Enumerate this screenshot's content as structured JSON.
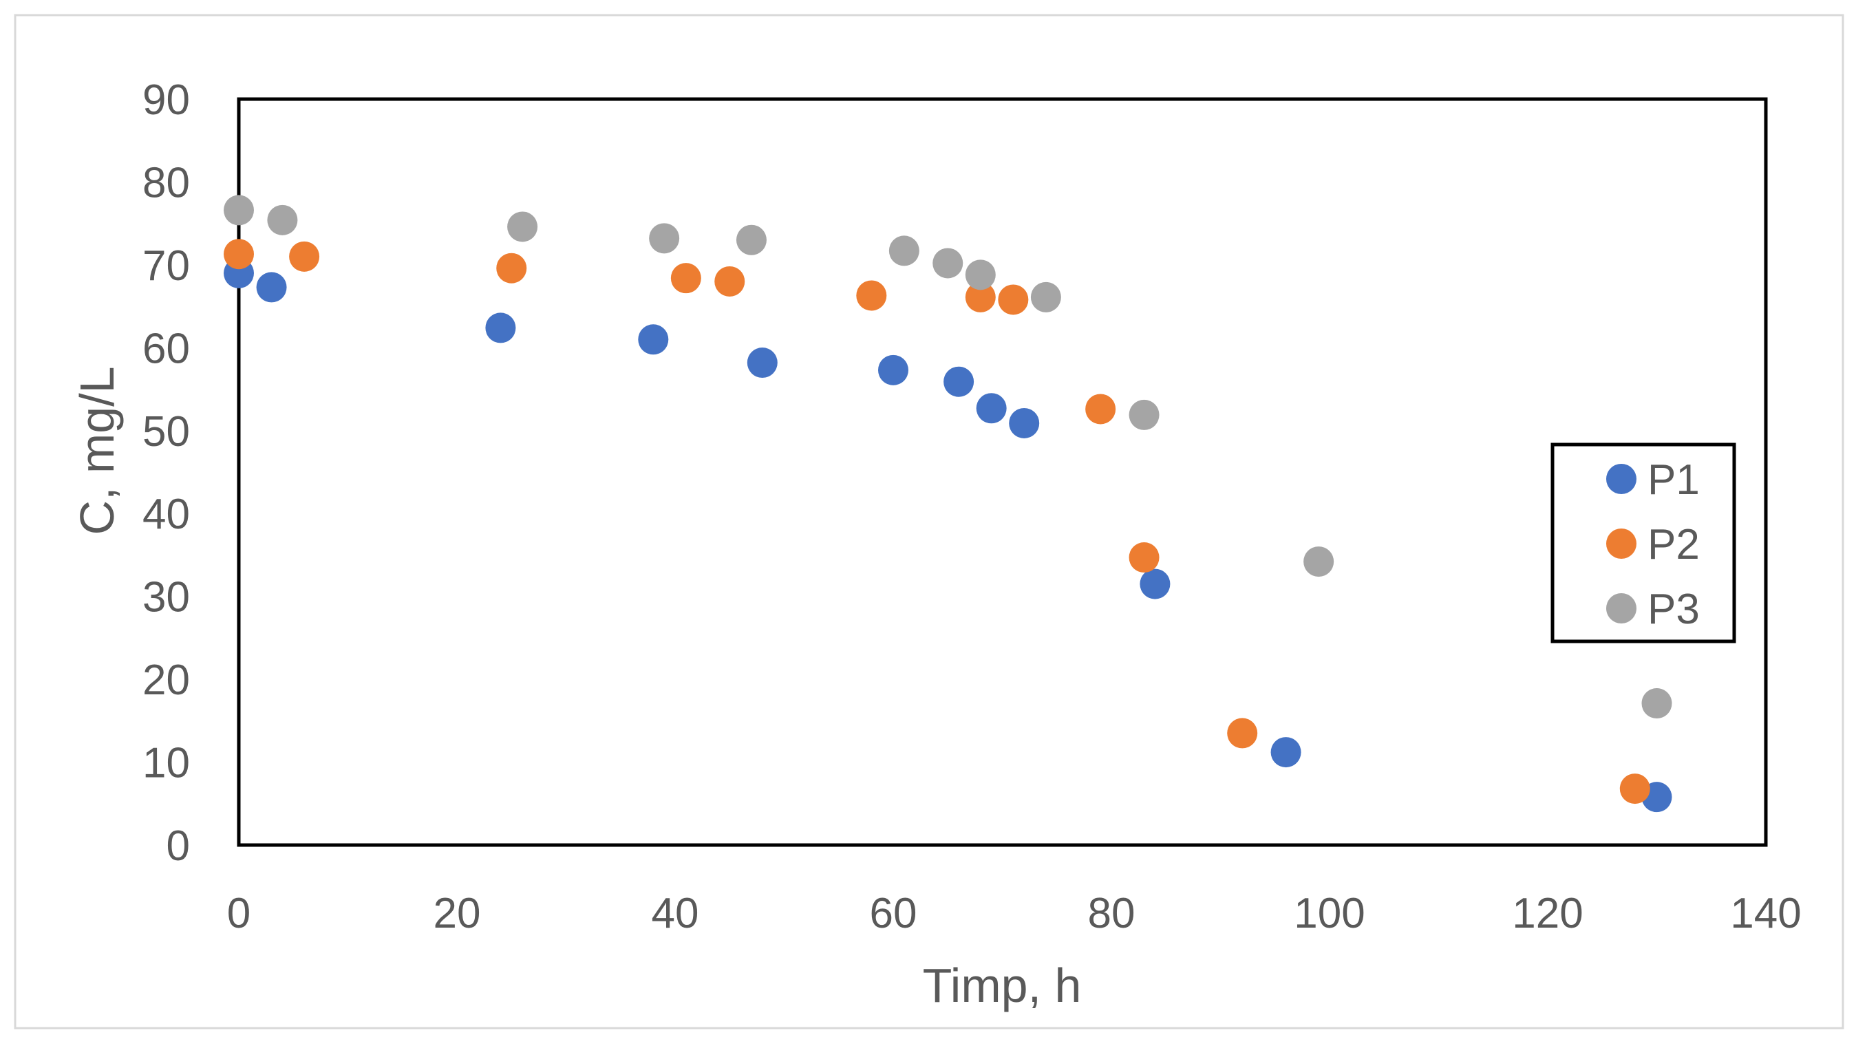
{
  "chart_data": {
    "type": "scatter",
    "title": "",
    "xlabel": "Timp, h",
    "ylabel": "C, mg/L",
    "xlim": [
      0,
      140
    ],
    "ylim": [
      0,
      90
    ],
    "x_ticks": [
      0,
      20,
      40,
      60,
      80,
      100,
      120,
      140
    ],
    "y_ticks": [
      0,
      10,
      20,
      30,
      40,
      50,
      60,
      70,
      80,
      90
    ],
    "x_tick_labels": [
      "0",
      "20",
      "40",
      "60",
      "80",
      "100",
      "120",
      "140"
    ],
    "y_tick_labels": [
      "0",
      "10",
      "20",
      "30",
      "40",
      "50",
      "60",
      "70",
      "80",
      "90"
    ],
    "grid": false,
    "legend_position": "right",
    "series": [
      {
        "name": "P1",
        "color": "#4472C4",
        "points": [
          [
            0,
            69
          ],
          [
            3,
            67.3
          ],
          [
            24,
            62.4
          ],
          [
            38,
            61
          ],
          [
            48,
            58.2
          ],
          [
            60,
            57.3
          ],
          [
            66,
            55.9
          ],
          [
            69,
            52.7
          ],
          [
            72,
            50.9
          ],
          [
            84,
            31.5
          ],
          [
            96,
            11.2
          ],
          [
            130,
            5.8
          ]
        ]
      },
      {
        "name": "P2",
        "color": "#ED7D31",
        "points": [
          [
            0,
            71.3
          ],
          [
            6,
            71
          ],
          [
            25,
            69.6
          ],
          [
            41,
            68.4
          ],
          [
            45,
            68
          ],
          [
            58,
            66.3
          ],
          [
            68,
            66.1
          ],
          [
            71,
            65.8
          ],
          [
            79,
            52.6
          ],
          [
            83,
            34.7
          ],
          [
            92,
            13.5
          ],
          [
            128,
            6.8
          ]
        ]
      },
      {
        "name": "P3",
        "color": "#A5A5A5",
        "points": [
          [
            0,
            76.6
          ],
          [
            4,
            75.4
          ],
          [
            26,
            74.6
          ],
          [
            39,
            73.2
          ],
          [
            47,
            73
          ],
          [
            61,
            71.7
          ],
          [
            65,
            70.2
          ],
          [
            68,
            68.8
          ],
          [
            74,
            66.1
          ],
          [
            83,
            51.9
          ],
          [
            99,
            34.2
          ],
          [
            130,
            17.1
          ]
        ]
      }
    ]
  }
}
